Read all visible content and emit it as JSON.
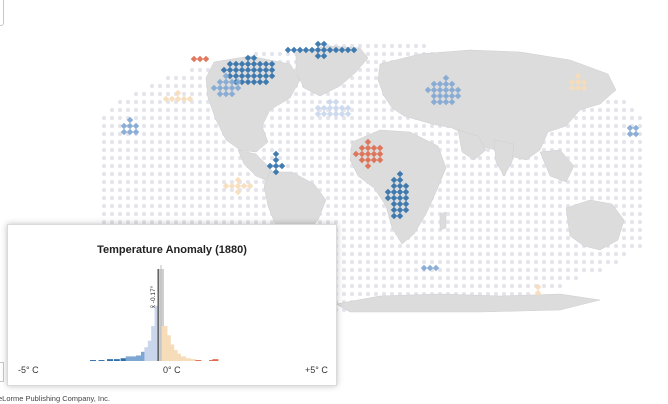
{
  "histogram": {
    "title": "Temperature Anomaly (1880)",
    "mean_label": "x̄ -0.17°",
    "axis_left": "-5° C",
    "axis_center": "0° C",
    "axis_right": "+5° C"
  },
  "attribution": "eLorme Publishing Company, Inc.",
  "colors": {
    "land": "#dcdcdc",
    "ocean_dot": "#e4e4ec",
    "cold_strong": "#2e6faa",
    "cold_mid": "#7ea6d3",
    "cold_light": "#c9d6ec",
    "warm_light": "#f6dcb8",
    "warm_strong": "#de6a4e"
  },
  "chart_data": {
    "type": "bar",
    "x_range": [
      -5,
      5
    ],
    "mean": -0.17,
    "bins": [
      {
        "x": -4.0,
        "v": 0.01
      },
      {
        "x": -3.5,
        "v": 0.01
      },
      {
        "x": -3.0,
        "v": 0.02
      },
      {
        "x": -2.6,
        "v": 0.02
      },
      {
        "x": -2.2,
        "v": 0.03
      },
      {
        "x": -1.9,
        "v": 0.05
      },
      {
        "x": -1.6,
        "v": 0.05
      },
      {
        "x": -1.3,
        "v": 0.06
      },
      {
        "x": -1.0,
        "v": 0.1
      },
      {
        "x": -0.8,
        "v": 0.15
      },
      {
        "x": -0.6,
        "v": 0.22
      },
      {
        "x": -0.4,
        "v": 0.38
      },
      {
        "x": -0.2,
        "v": 0.6
      },
      {
        "x": 0.0,
        "v": 1.0
      },
      {
        "x": 0.2,
        "v": 0.38
      },
      {
        "x": 0.4,
        "v": 0.28
      },
      {
        "x": 0.6,
        "v": 0.18
      },
      {
        "x": 0.8,
        "v": 0.12
      },
      {
        "x": 1.0,
        "v": 0.08
      },
      {
        "x": 1.3,
        "v": 0.05
      },
      {
        "x": 1.6,
        "v": 0.03
      },
      {
        "x": 1.9,
        "v": 0.02
      },
      {
        "x": 2.2,
        "v": 0.01
      },
      {
        "x": 3.0,
        "v": 0.01
      },
      {
        "x": 3.2,
        "v": 0.02
      }
    ]
  }
}
